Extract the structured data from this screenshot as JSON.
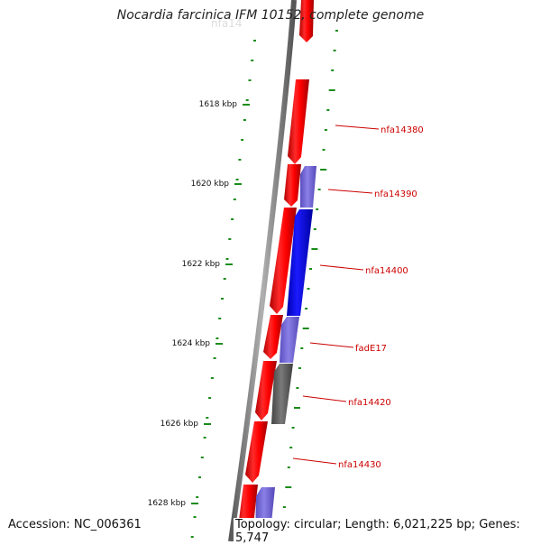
{
  "title": "Nocardia farcinica IFM 10152, complete genome",
  "footer": {
    "accession": "Accession: NC_006361",
    "topology": "Topology: circular; Length: 6,021,225 bp; Genes: 5,747"
  },
  "colors": {
    "backbone": "#888888",
    "tick": "#1a8c1a",
    "forward_gene": "#ff0000",
    "reverse_blue": "#0000ff",
    "reverse_light": "#7766dd",
    "reverse_gray": "#666666",
    "label": "#cc0000"
  },
  "ruler": [
    {
      "kbp": 1618,
      "label": "1618 kbp"
    },
    {
      "kbp": 1620,
      "label": "1620 kbp"
    },
    {
      "kbp": 1622,
      "label": "1622 kbp"
    },
    {
      "kbp": 1624,
      "label": "1624 kbp"
    },
    {
      "kbp": 1626,
      "label": "1626 kbp"
    },
    {
      "kbp": 1628,
      "label": "1628 kbp"
    }
  ],
  "genes": [
    {
      "name": "nfa14380"
    },
    {
      "name": "nfa14390"
    },
    {
      "name": "nfa14400"
    },
    {
      "name": "fadE17"
    },
    {
      "name": "nfa14420"
    },
    {
      "name": "nfa14430"
    }
  ]
}
